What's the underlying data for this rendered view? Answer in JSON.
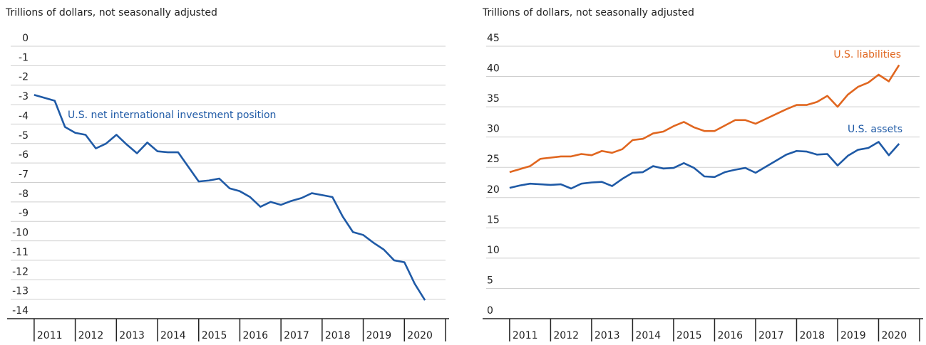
{
  "chart_data": [
    {
      "type": "line",
      "title": "Trillions of dollars, not seasonally adjusted",
      "x": [
        2011,
        2011.25,
        2011.5,
        2011.75,
        2012,
        2012.25,
        2012.5,
        2012.75,
        2013,
        2013.25,
        2013.5,
        2013.75,
        2014,
        2014.25,
        2014.5,
        2014.75,
        2015,
        2015.25,
        2015.5,
        2015.75,
        2016,
        2016.25,
        2016.5,
        2016.75,
        2017,
        2017.25,
        2017.5,
        2017.75,
        2018,
        2018.25,
        2018.5,
        2018.75,
        2019,
        2019.25,
        2019.5,
        2019.75,
        2020,
        2020.25,
        2020.5
      ],
      "series": [
        {
          "name": "U.S. net international investment position",
          "color": "#1f5aa6",
          "values": [
            -2.5,
            -2.65,
            -2.8,
            -4.15,
            -4.45,
            -4.55,
            -5.25,
            -5.0,
            -4.55,
            -5.05,
            -5.5,
            -4.95,
            -5.4,
            -5.45,
            -5.45,
            -6.2,
            -6.95,
            -6.9,
            -6.8,
            -7.3,
            -7.45,
            -7.75,
            -8.25,
            -8.0,
            -8.15,
            -7.95,
            -7.8,
            -7.55,
            -7.65,
            -7.75,
            -8.75,
            -9.55,
            -9.7,
            -10.1,
            -10.45,
            -11.0,
            -11.1,
            -12.2,
            -13.05
          ]
        }
      ],
      "xlim": [
        2010.95,
        2021
      ],
      "xticks": [
        2011,
        2012,
        2013,
        2014,
        2015,
        2016,
        2017,
        2018,
        2019,
        2020
      ],
      "ylim": [
        -14,
        0
      ],
      "yticks": [
        0,
        -1,
        -2,
        -3,
        -4,
        -5,
        -6,
        -7,
        -8,
        -9,
        -10,
        -11,
        -12,
        -13,
        -14
      ],
      "grid": true
    },
    {
      "type": "line",
      "title": "Trillions of dollars, not seasonally adjusted",
      "x": [
        2011,
        2011.25,
        2011.5,
        2011.75,
        2012,
        2012.25,
        2012.5,
        2012.75,
        2013,
        2013.25,
        2013.5,
        2013.75,
        2014,
        2014.25,
        2014.5,
        2014.75,
        2015,
        2015.25,
        2015.5,
        2015.75,
        2016,
        2016.25,
        2016.5,
        2016.75,
        2017,
        2017.25,
        2017.5,
        2017.75,
        2018,
        2018.25,
        2018.5,
        2018.75,
        2019,
        2019.25,
        2019.5,
        2019.75,
        2020,
        2020.25,
        2020.5
      ],
      "series": [
        {
          "name": "U.S. liabilities",
          "color": "#e0661f",
          "values": [
            24.2,
            24.7,
            25.2,
            26.4,
            26.6,
            26.8,
            26.8,
            27.2,
            27.0,
            27.7,
            27.4,
            28.0,
            29.5,
            29.7,
            30.6,
            30.9,
            31.8,
            32.5,
            31.6,
            31.0,
            31.0,
            31.9,
            32.8,
            32.8,
            32.2,
            33.0,
            33.8,
            34.6,
            35.3,
            35.3,
            35.8,
            36.8,
            35.0,
            37.0,
            38.3,
            39.0,
            40.3,
            39.2,
            41.9
          ]
        },
        {
          "name": "U.S. assets",
          "color": "#1f5aa6",
          "values": [
            21.6,
            22.0,
            22.3,
            22.2,
            22.1,
            22.2,
            21.5,
            22.3,
            22.5,
            22.6,
            21.9,
            23.1,
            24.1,
            24.2,
            25.2,
            24.8,
            24.9,
            25.7,
            24.9,
            23.5,
            23.4,
            24.2,
            24.6,
            24.9,
            24.1,
            25.1,
            26.1,
            27.1,
            27.7,
            27.6,
            27.1,
            27.2,
            25.3,
            26.9,
            27.9,
            28.2,
            29.2,
            27.0,
            28.9
          ]
        }
      ],
      "xlim": [
        2010.95,
        2021
      ],
      "xticks": [
        2011,
        2012,
        2013,
        2014,
        2015,
        2016,
        2017,
        2018,
        2019,
        2020
      ],
      "ylim": [
        0,
        45
      ],
      "yticks": [
        45,
        40,
        35,
        30,
        25,
        20,
        15,
        10,
        5,
        0
      ],
      "grid": true
    }
  ]
}
